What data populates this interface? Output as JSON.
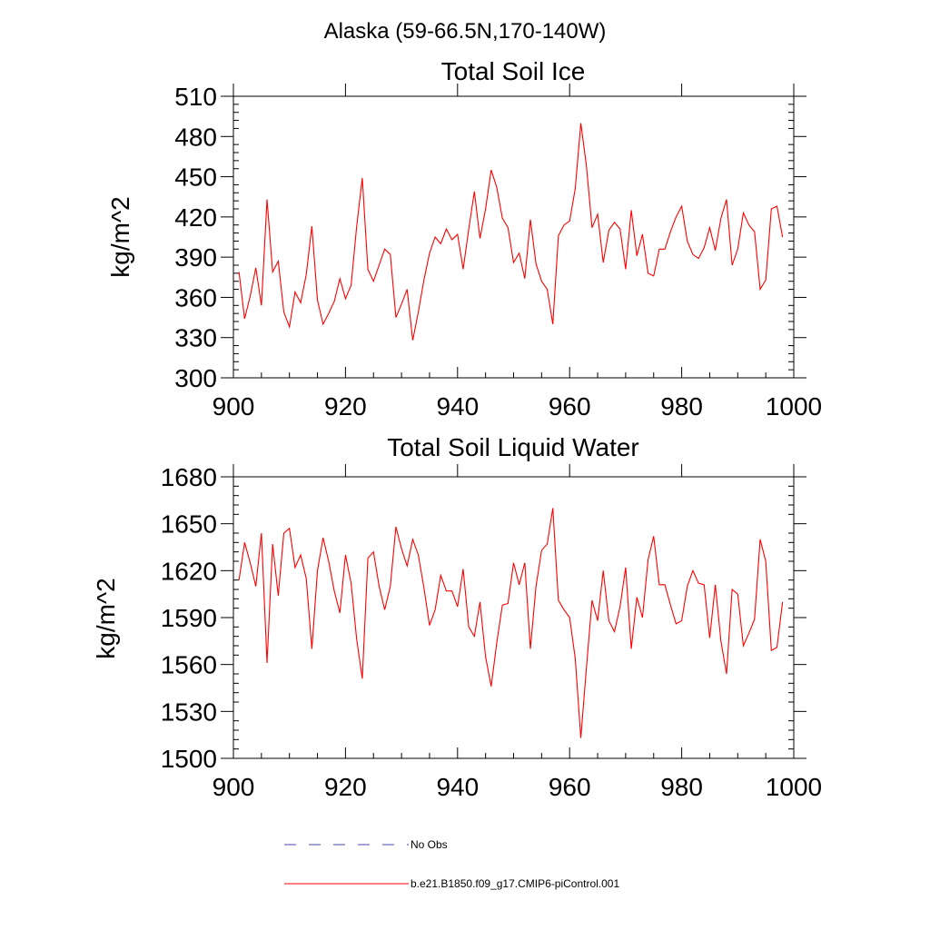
{
  "figure": {
    "title": "Alaska (59-66.5N,170-140W)"
  },
  "colors": {
    "series": "#ff0000",
    "obs": "#4a4aa8",
    "axis": "#000000"
  },
  "legend": {
    "obs_label": "No Obs",
    "model_label": "b.e21.B1850.f09_g17.CMIP6-piControl.001"
  },
  "chart_data": [
    {
      "type": "line",
      "title": "Total Soil Ice",
      "xlabel": "",
      "ylabel": "kg/m^2",
      "xlim": [
        900,
        1000
      ],
      "ylim": [
        300,
        510
      ],
      "xticks": [
        900,
        920,
        940,
        960,
        980,
        1000
      ],
      "yticks": [
        300,
        330,
        360,
        390,
        420,
        450,
        480,
        510
      ],
      "x_start": 901,
      "series": [
        {
          "name": "b.e21.B1850.f09_g17.CMIP6-piControl.001",
          "values": [
            379,
            344,
            361,
            382,
            354,
            433,
            379,
            387,
            349,
            338,
            364,
            356,
            377,
            413,
            358,
            340,
            348,
            357,
            374,
            359,
            369,
            413,
            449,
            381,
            372,
            384,
            396,
            392,
            345,
            355,
            366,
            328,
            349,
            373,
            393,
            405,
            400,
            411,
            403,
            407,
            381,
            411,
            439,
            404,
            426,
            455,
            442,
            419,
            412,
            386,
            393,
            374,
            418,
            385,
            372,
            366,
            340,
            406,
            414,
            417,
            441,
            490,
            458,
            412,
            422,
            386,
            410,
            416,
            411,
            381,
            425,
            391,
            407,
            378,
            376,
            396,
            396,
            409,
            420,
            428,
            402,
            392,
            389,
            397,
            412,
            395,
            419,
            433,
            384,
            396,
            423,
            414,
            409,
            366,
            373,
            426,
            428,
            405
          ]
        }
      ]
    },
    {
      "type": "line",
      "title": "Total Soil Liquid Water",
      "xlabel": "",
      "ylabel": "kg/m^2",
      "xlim": [
        900,
        1000
      ],
      "ylim": [
        1500,
        1680
      ],
      "xticks": [
        900,
        920,
        940,
        960,
        980,
        1000
      ],
      "yticks": [
        1500,
        1530,
        1560,
        1590,
        1620,
        1650,
        1680
      ],
      "x_start": 901,
      "series": [
        {
          "name": "b.e21.B1850.f09_g17.CMIP6-piControl.001",
          "values": [
            1614,
            1638,
            1625,
            1610,
            1644,
            1561,
            1637,
            1604,
            1644,
            1647,
            1622,
            1630,
            1615,
            1570,
            1620,
            1641,
            1626,
            1607,
            1593,
            1630,
            1612,
            1576,
            1551,
            1628,
            1632,
            1610,
            1595,
            1610,
            1648,
            1634,
            1623,
            1640,
            1630,
            1609,
            1585,
            1595,
            1617,
            1607,
            1607,
            1597,
            1621,
            1584,
            1578,
            1600,
            1565,
            1546,
            1574,
            1598,
            1599,
            1625,
            1611,
            1625,
            1570,
            1610,
            1633,
            1637,
            1660,
            1601,
            1595,
            1590,
            1564,
            1513,
            1558,
            1601,
            1588,
            1620,
            1588,
            1581,
            1597,
            1622,
            1570,
            1603,
            1590,
            1627,
            1642,
            1611,
            1611,
            1598,
            1586,
            1588,
            1610,
            1620,
            1612,
            1611,
            1577,
            1611,
            1575,
            1554,
            1608,
            1605,
            1572,
            1580,
            1589,
            1640,
            1626,
            1569,
            1571,
            1600
          ]
        }
      ]
    }
  ]
}
